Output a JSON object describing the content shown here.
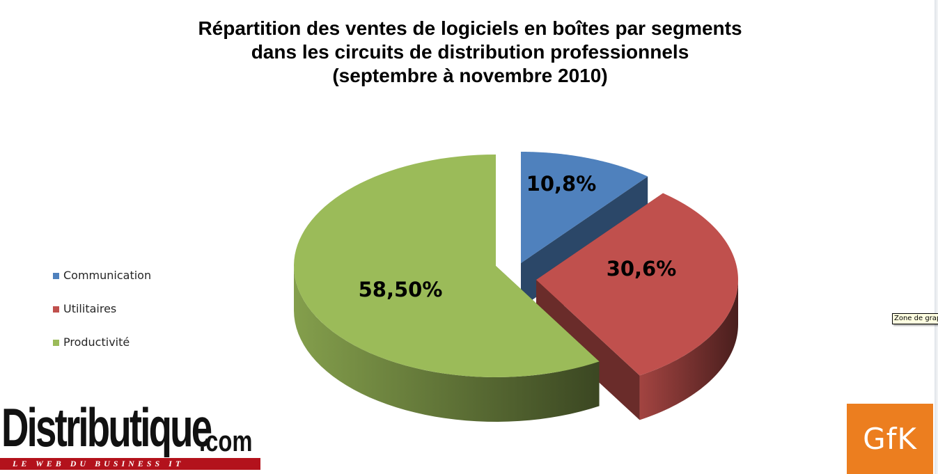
{
  "chart_data": {
    "type": "pie",
    "title_lines": [
      "Répartition des ventes de logiciels en boîtes par segments",
      "dans les circuits de distribution professionnels",
      "(septembre à novembre 2010)"
    ],
    "categories": [
      "Communication",
      "Utilitaires",
      "Productivité"
    ],
    "values": [
      10.8,
      30.6,
      58.5
    ],
    "data_labels": [
      "10,8%",
      "30,6%",
      "58,50%"
    ],
    "colors": [
      "#4f81bd",
      "#c0504d",
      "#9bbb59"
    ],
    "exploded": true,
    "three_d": true,
    "legend_position": "left"
  },
  "tooltip": "Zone de graphique",
  "logos": {
    "distributique": {
      "name": "Distributique",
      "suffix": ".com",
      "tagline": "LE WEB DU BUSINESS IT"
    },
    "gfk": "GfK"
  }
}
